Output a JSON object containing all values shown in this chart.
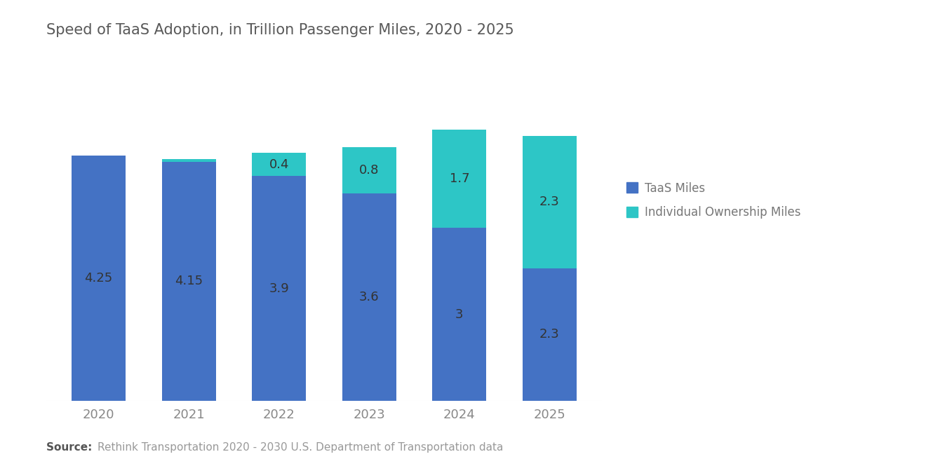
{
  "title": "Speed of TaaS Adoption, in Trillion Passenger Miles, 2020 - 2025",
  "years": [
    "2020",
    "2021",
    "2022",
    "2023",
    "2024",
    "2025"
  ],
  "taas_miles": [
    4.25,
    4.15,
    3.9,
    3.6,
    3.0,
    2.3
  ],
  "individual_miles": [
    0.0,
    0.05,
    0.4,
    0.8,
    1.7,
    2.3
  ],
  "taas_labels": [
    "4.25",
    "4.15",
    "3.9",
    "3.6",
    "3",
    "2.3"
  ],
  "individual_labels": [
    "",
    "",
    "0.4",
    "0.8",
    "1.7",
    "2.3"
  ],
  "bar_color_taas": "#4472C4",
  "bar_color_individual": "#2DC6C6",
  "legend_taas": "TaaS Miles",
  "legend_individual": "Individual Ownership Miles",
  "source_bold": "Source:  ",
  "source_text": "Rethink Transportation 2020 - 2030 U.S. Department of Transportation data",
  "background_color": "#FFFFFF",
  "title_color": "#595959",
  "label_color": "#333333",
  "axis_label_color": "#888888",
  "ylim": [
    0,
    5.5
  ],
  "bar_width": 0.6
}
